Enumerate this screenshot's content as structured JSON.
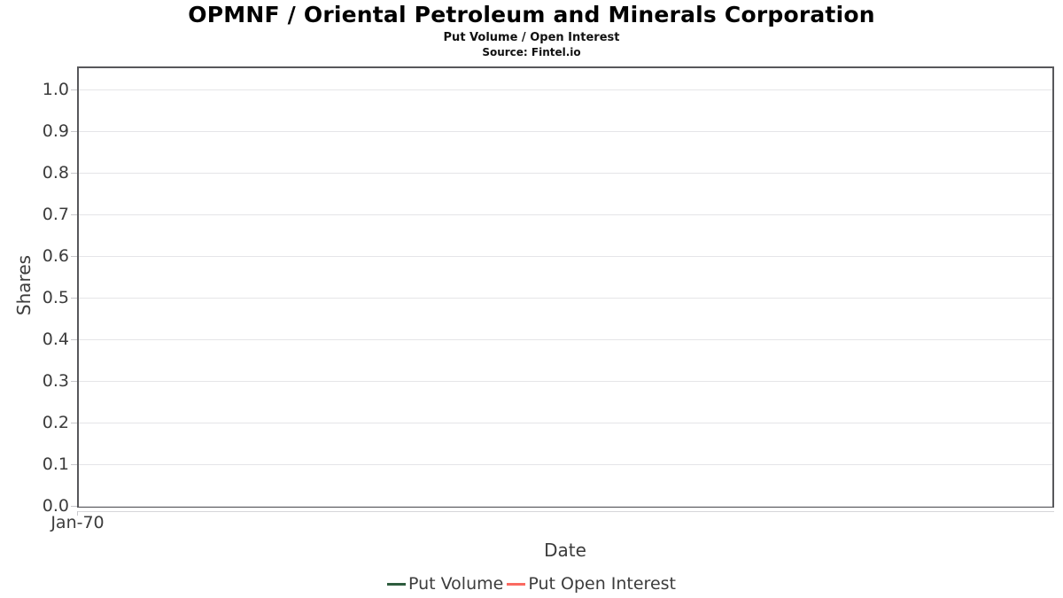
{
  "chart_data": {
    "type": "line",
    "title": "OPMNF / Oriental Petroleum and Minerals Corporation",
    "subtitle": "Put Volume / Open Interest",
    "source": "Source: Fintel.io",
    "xlabel": "Date",
    "ylabel": "Shares",
    "x_ticks": [
      "Jan-70"
    ],
    "y_ticks": [
      "0.0",
      "0.1",
      "0.2",
      "0.3",
      "0.4",
      "0.5",
      "0.6",
      "0.7",
      "0.8",
      "0.9",
      "1.0"
    ],
    "ylim": [
      0,
      1.05
    ],
    "grid": "horizontal-only",
    "gridline_color": "#e5e5e8",
    "legend_position": "bottom-center",
    "series": [
      {
        "name": "Put Volume",
        "color": "#2e5c3e",
        "x": [],
        "y": []
      },
      {
        "name": "Put Open Interest",
        "color": "#fa6a61",
        "x": [],
        "y": []
      }
    ]
  }
}
